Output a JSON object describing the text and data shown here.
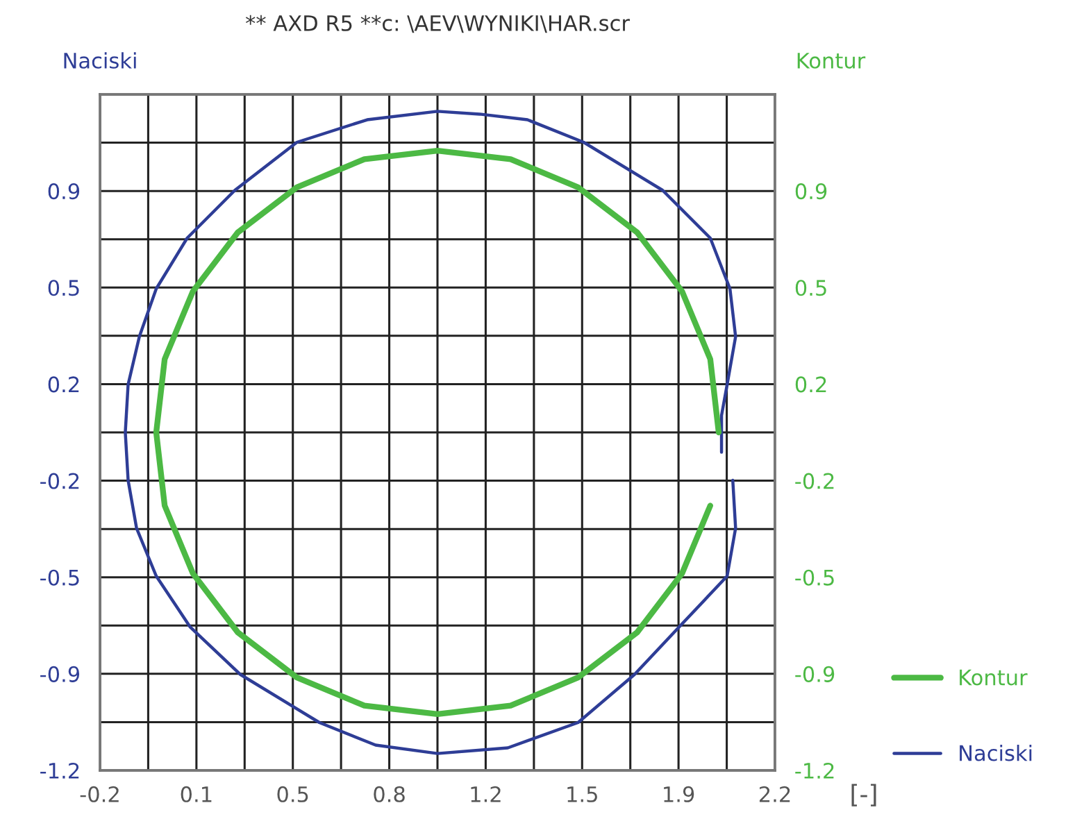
{
  "chart_data": {
    "type": "line",
    "title": "** AXD R5 **c: \\AEV\\WYNIKI\\HAR.scr",
    "xlabel": "[-]",
    "ylabel": "Naciski",
    "y2label": "Kontur",
    "xlim": [
      -0.2,
      2.2
    ],
    "ylim": [
      -1.2,
      1.2
    ],
    "y2lim": [
      -1.2,
      1.2
    ],
    "xticks": [
      {
        "value": -0.2,
        "label": "-0.2"
      },
      {
        "value": -0.0286,
        "label": null
      },
      {
        "value": 0.1429,
        "label": "0.1"
      },
      {
        "value": 0.3143,
        "label": null
      },
      {
        "value": 0.4857,
        "label": "0.5"
      },
      {
        "value": 0.6571,
        "label": null
      },
      {
        "value": 0.8286,
        "label": "0.8"
      },
      {
        "value": 1.0,
        "label": null
      },
      {
        "value": 1.1714,
        "label": "1.2"
      },
      {
        "value": 1.3429,
        "label": null
      },
      {
        "value": 1.5143,
        "label": "1.5"
      },
      {
        "value": 1.6857,
        "label": null
      },
      {
        "value": 1.8571,
        "label": "1.9"
      },
      {
        "value": 2.0286,
        "label": null
      },
      {
        "value": 2.2,
        "label": "2.2"
      }
    ],
    "yticks": [
      {
        "value": -1.2,
        "label": "-1.2"
      },
      {
        "value": -1.0286,
        "label": null
      },
      {
        "value": -0.8571,
        "label": "-0.9"
      },
      {
        "value": -0.6857,
        "label": null
      },
      {
        "value": -0.5143,
        "label": "-0.5"
      },
      {
        "value": -0.3429,
        "label": null
      },
      {
        "value": -0.1714,
        "label": "-0.2"
      },
      {
        "value": 0.0,
        "label": null
      },
      {
        "value": 0.1714,
        "label": "0.2"
      },
      {
        "value": 0.3429,
        "label": null
      },
      {
        "value": 0.5143,
        "label": "0.5"
      },
      {
        "value": 0.6857,
        "label": null
      },
      {
        "value": 0.8571,
        "label": "0.9"
      },
      {
        "value": 1.0286,
        "label": null
      },
      {
        "value": 1.2,
        "label": null
      }
    ],
    "y2ticks": [
      {
        "value": -1.2,
        "label": "-1.2"
      },
      {
        "value": -1.0286,
        "label": null
      },
      {
        "value": -0.8571,
        "label": "-0.9"
      },
      {
        "value": -0.6857,
        "label": null
      },
      {
        "value": -0.5143,
        "label": "-0.5"
      },
      {
        "value": -0.3429,
        "label": null
      },
      {
        "value": -0.1714,
        "label": "-0.2"
      },
      {
        "value": 0.0,
        "label": null
      },
      {
        "value": 0.1714,
        "label": "0.2"
      },
      {
        "value": 0.3429,
        "label": null
      },
      {
        "value": 0.5143,
        "label": "0.5"
      },
      {
        "value": 0.6857,
        "label": null
      },
      {
        "value": 0.8571,
        "label": "0.9"
      },
      {
        "value": 1.0286,
        "label": null
      },
      {
        "value": 1.2,
        "label": null
      }
    ],
    "grid": true,
    "legend": "bottom right",
    "series": [
      {
        "name": "Kontur",
        "color": "#4cb944",
        "axis": "y2",
        "x": [
          2.0,
          1.97,
          1.87,
          1.71,
          1.5,
          1.26,
          1.0,
          0.74,
          0.5,
          0.29,
          0.13,
          0.03,
          0.0,
          0.03,
          0.13,
          0.29,
          0.5,
          0.74,
          1.0,
          1.26,
          1.5,
          1.71,
          1.87,
          1.97
        ],
        "values": [
          0.0,
          0.26,
          0.5,
          0.71,
          0.87,
          0.97,
          1.0,
          0.97,
          0.87,
          0.71,
          0.5,
          0.26,
          0.0,
          -0.26,
          -0.5,
          -0.71,
          -0.87,
          -0.97,
          -1.0,
          -0.97,
          -0.87,
          -0.71,
          -0.5,
          -0.26
        ]
      },
      {
        "name": "Naciski",
        "color": "#2e3d96",
        "x": [
          2.01,
          2.01,
          2.03,
          2.06,
          2.04,
          1.97,
          1.8,
          1.52,
          1.32,
          1.15,
          1.0,
          0.75,
          0.5,
          0.28,
          0.11,
          0.0,
          -0.06,
          -0.1,
          -0.11,
          -0.1,
          -0.07,
          0.0,
          0.12,
          0.3,
          0.58,
          0.78,
          1.0,
          1.25,
          1.5,
          1.7,
          1.86,
          2.03,
          2.06,
          2.05
        ],
        "values": [
          -0.07,
          0.06,
          0.17,
          0.34,
          0.51,
          0.69,
          0.86,
          1.03,
          1.11,
          1.13,
          1.14,
          1.11,
          1.03,
          0.86,
          0.69,
          0.51,
          0.34,
          0.17,
          0.0,
          -0.17,
          -0.34,
          -0.51,
          -0.69,
          -0.86,
          -1.03,
          -1.11,
          -1.14,
          -1.12,
          -1.03,
          -0.86,
          -0.69,
          -0.51,
          -0.34,
          -0.17
        ]
      }
    ]
  }
}
